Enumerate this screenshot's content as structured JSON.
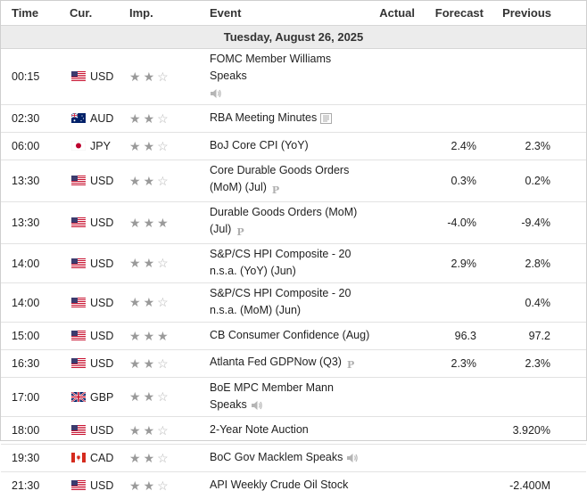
{
  "headers": {
    "time": "Time",
    "currency": "Cur.",
    "importance": "Imp.",
    "event": "Event",
    "actual": "Actual",
    "forecast": "Forecast",
    "previous": "Previous"
  },
  "date_label": "Tuesday, August 26, 2025",
  "colors": {
    "star_filled": "#9a9a9a",
    "star_empty": "#b5b5b5",
    "date_band": "#ececec"
  },
  "rows": [
    {
      "time": "00:15",
      "currency": "USD",
      "flag_icon": "us-flag-icon",
      "stars": 2,
      "event_lines": [
        "FOMC Member Williams Speaks",
        ""
      ],
      "event_icon": "speaker-icon",
      "actual": "",
      "forecast": "",
      "previous": ""
    },
    {
      "time": "02:30",
      "currency": "AUD",
      "flag_icon": "au-flag-icon",
      "stars": 2,
      "event_lines": [
        "RBA Meeting Minutes"
      ],
      "event_icon": "document-icon",
      "actual": "",
      "forecast": "",
      "previous": ""
    },
    {
      "time": "06:00",
      "currency": "JPY",
      "flag_icon": "jp-flag-icon",
      "stars": 2,
      "event_lines": [
        "BoJ Core CPI (YoY)"
      ],
      "event_icon": "",
      "actual": "",
      "forecast": "2.4%",
      "previous": "2.3%"
    },
    {
      "time": "13:30",
      "currency": "USD",
      "flag_icon": "us-flag-icon",
      "stars": 2,
      "event_lines": [
        "Core Durable Goods Orders",
        "(MoM) (Jul)"
      ],
      "event_icon": "preliminary-icon",
      "actual": "",
      "forecast": "0.3%",
      "previous": "0.2%"
    },
    {
      "time": "13:30",
      "currency": "USD",
      "flag_icon": "us-flag-icon",
      "stars": 3,
      "event_lines": [
        "Durable Goods Orders (MoM)",
        "(Jul)"
      ],
      "event_icon": "preliminary-icon",
      "actual": "",
      "forecast": "-4.0%",
      "previous": "-9.4%"
    },
    {
      "time": "14:00",
      "currency": "USD",
      "flag_icon": "us-flag-icon",
      "stars": 2,
      "event_lines": [
        "S&P/CS HPI Composite - 20",
        "n.s.a. (YoY) (Jun)"
      ],
      "event_icon": "",
      "actual": "",
      "forecast": "2.9%",
      "previous": "2.8%"
    },
    {
      "time": "14:00",
      "currency": "USD",
      "flag_icon": "us-flag-icon",
      "stars": 2,
      "event_lines": [
        "S&P/CS HPI Composite - 20",
        "n.s.a. (MoM) (Jun)"
      ],
      "event_icon": "",
      "actual": "",
      "forecast": "",
      "previous": "0.4%"
    },
    {
      "time": "15:00",
      "currency": "USD",
      "flag_icon": "us-flag-icon",
      "stars": 3,
      "event_lines": [
        "CB Consumer Confidence (Aug)"
      ],
      "event_icon": "",
      "actual": "",
      "forecast": "96.3",
      "previous": "97.2"
    },
    {
      "time": "16:30",
      "currency": "USD",
      "flag_icon": "us-flag-icon",
      "stars": 2,
      "event_lines": [
        "Atlanta Fed GDPNow (Q3)"
      ],
      "event_icon": "preliminary-icon",
      "actual": "",
      "forecast": "2.3%",
      "previous": "2.3%"
    },
    {
      "time": "17:00",
      "currency": "GBP",
      "flag_icon": "gb-flag-icon",
      "stars": 2,
      "event_lines": [
        "BoE MPC Member Mann",
        "Speaks"
      ],
      "event_icon": "speaker-icon",
      "actual": "",
      "forecast": "",
      "previous": ""
    },
    {
      "time": "18:00",
      "currency": "USD",
      "flag_icon": "us-flag-icon",
      "stars": 2,
      "event_lines": [
        "2-Year Note Auction"
      ],
      "event_icon": "",
      "actual": "",
      "forecast": "",
      "previous": "3.920%"
    },
    {
      "time": "19:30",
      "currency": "CAD",
      "flag_icon": "ca-flag-icon",
      "stars": 2,
      "event_lines": [
        "BoC Gov Macklem Speaks"
      ],
      "event_icon": "speaker-icon",
      "actual": "",
      "forecast": "",
      "previous": ""
    },
    {
      "time": "21:30",
      "currency": "USD",
      "flag_icon": "us-flag-icon",
      "stars": 2,
      "event_lines": [
        "API Weekly Crude Oil Stock"
      ],
      "event_icon": "",
      "actual": "",
      "forecast": "",
      "previous": "-2.400M"
    }
  ]
}
